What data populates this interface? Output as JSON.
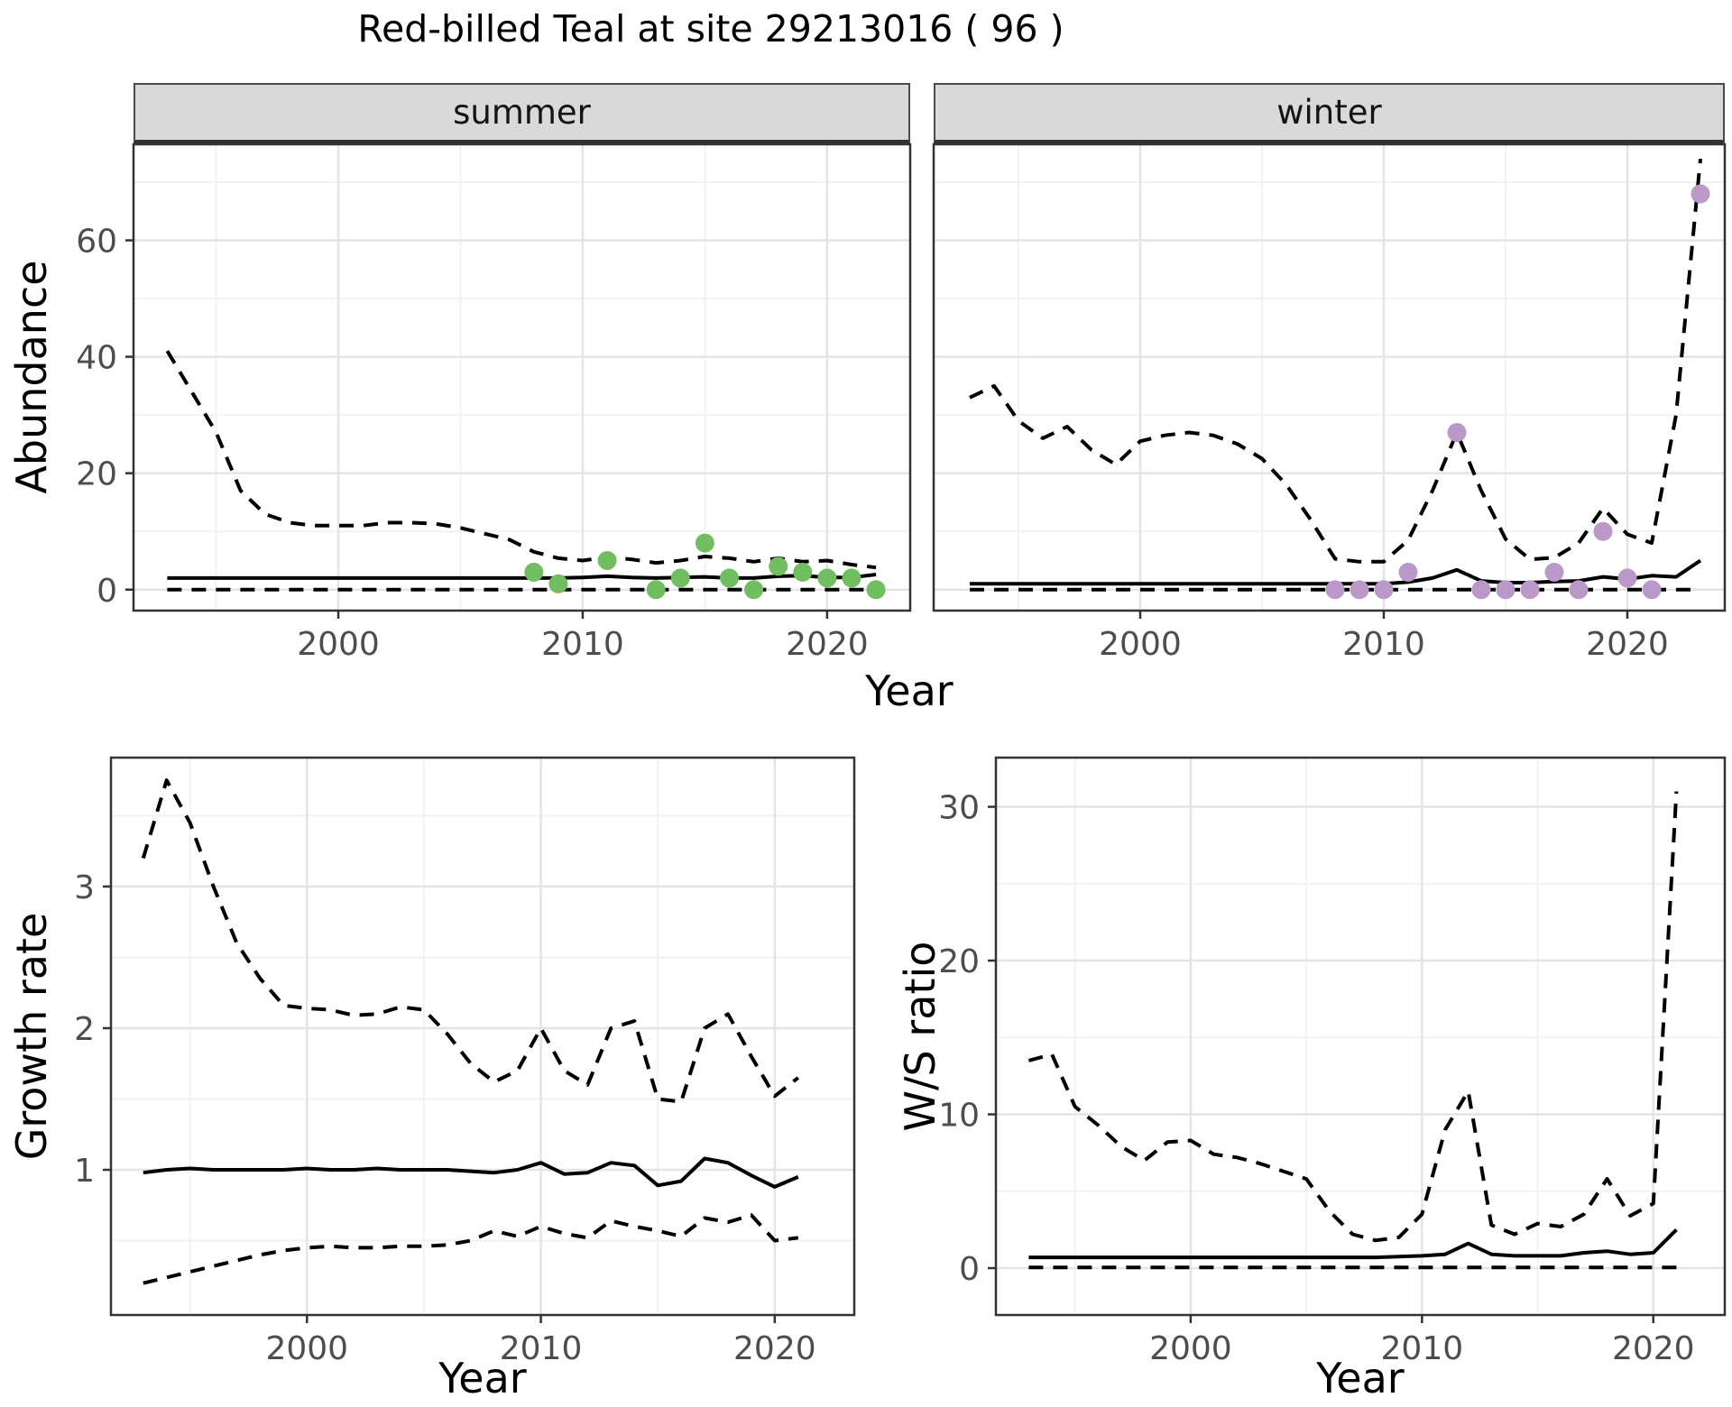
{
  "title": "Red-billed Teal at site 29213016 ( 96 )",
  "facets": [
    "summer",
    "winter"
  ],
  "axis_titles": {
    "abundance": "Abundance",
    "year": "Year",
    "growth_rate": "Growth rate",
    "ws_ratio": "W/S ratio"
  },
  "colors": {
    "summer_point": "#70BE5F",
    "winter_point": "#BA98C8",
    "line": "#000000",
    "strip_bg": "#d9d9d9",
    "panel_border": "#333333",
    "grid_major": "#e4e4e4",
    "grid_minor": "#f2f2f2",
    "tick_text": "#4d4d4d"
  },
  "chart_data": [
    {
      "key": "summer",
      "type": "line",
      "facet": "summer",
      "xlabel": "Year",
      "ylabel": "Abundance",
      "xlim": [
        1991.62,
        2023.4
      ],
      "ylim": [
        -3.6,
        76.5
      ],
      "xticks": [
        2000,
        2010,
        2020
      ],
      "yticks": [
        0,
        20,
        40,
        60
      ],
      "minor_x": [
        1995,
        2005,
        2015
      ],
      "minor_y": [
        10,
        30,
        50,
        70
      ],
      "show_y_labels": true,
      "grid": true,
      "legend": "none",
      "series": [
        {
          "name": "upper_ci",
          "style": "dashed",
          "x": [
            1993,
            1994,
            1995,
            1996,
            1997,
            1998,
            1999,
            2000,
            2001,
            2002,
            2003,
            2004,
            2005,
            2006,
            2007,
            2008,
            2009,
            2010,
            2011,
            2012,
            2013,
            2014,
            2015,
            2016,
            2017,
            2018,
            2019,
            2020,
            2021,
            2022
          ],
          "y": [
            41,
            34,
            27,
            17,
            13,
            11.5,
            11,
            11,
            11,
            11.5,
            11.5,
            11.3,
            10.6,
            9.6,
            8.6,
            6.5,
            5.4,
            5,
            5.6,
            5.2,
            4.6,
            5,
            5.7,
            5.4,
            4.8,
            5.4,
            4.8,
            5,
            4.3,
            3.8
          ]
        },
        {
          "name": "fit",
          "style": "solid",
          "x": [
            1993,
            1994,
            1995,
            1996,
            1997,
            1998,
            1999,
            2000,
            2001,
            2002,
            2003,
            2004,
            2005,
            2006,
            2007,
            2008,
            2009,
            2010,
            2011,
            2012,
            2013,
            2014,
            2015,
            2016,
            2017,
            2018,
            2019,
            2020,
            2021,
            2022
          ],
          "y": [
            2,
            2,
            2,
            2,
            2,
            2,
            2,
            2,
            2,
            2,
            2,
            2,
            2,
            2,
            2,
            2,
            2,
            2.1,
            2.3,
            2.1,
            2,
            2.1,
            2.2,
            2,
            2,
            2.3,
            2.4,
            2.1,
            2.1,
            2.6
          ]
        },
        {
          "name": "lower_ci",
          "style": "dashed",
          "x": [
            1993,
            1994,
            1995,
            1996,
            1997,
            1998,
            1999,
            2000,
            2001,
            2002,
            2003,
            2004,
            2005,
            2006,
            2007,
            2008,
            2009,
            2010,
            2011,
            2012,
            2013,
            2014,
            2015,
            2016,
            2017,
            2018,
            2019,
            2020,
            2021,
            2022
          ],
          "y": [
            0,
            0,
            0,
            0,
            0,
            0,
            0,
            0,
            0,
            0,
            0,
            0,
            0,
            0,
            0,
            0,
            0,
            0,
            0,
            0,
            0,
            0,
            0,
            0,
            0,
            0,
            0,
            0,
            0,
            0
          ]
        },
        {
          "name": "observed",
          "style": "points",
          "color": "#70BE5F",
          "x": [
            2008,
            2009,
            2011,
            2013,
            2014,
            2015,
            2016,
            2017,
            2018,
            2019,
            2020,
            2021,
            2022
          ],
          "y": [
            3,
            1,
            5,
            0,
            2,
            8,
            2,
            0,
            4,
            3,
            2,
            2,
            0
          ]
        }
      ]
    },
    {
      "key": "winter",
      "type": "line",
      "facet": "winter",
      "xlabel": "Year",
      "ylabel": "Abundance",
      "xlim": [
        1991.52,
        2024.0
      ],
      "ylim": [
        -3.6,
        76.5
      ],
      "xticks": [
        2000,
        2010,
        2020
      ],
      "yticks": [
        0,
        20,
        40,
        60
      ],
      "minor_x": [
        1995,
        2005,
        2015
      ],
      "minor_y": [
        10,
        30,
        50,
        70
      ],
      "show_y_labels": false,
      "grid": true,
      "legend": "none",
      "series": [
        {
          "name": "upper_ci",
          "style": "dashed",
          "x": [
            1993,
            1994,
            1995,
            1996,
            1997,
            1998,
            1999,
            2000,
            2001,
            2002,
            2003,
            2004,
            2005,
            2006,
            2007,
            2008,
            2009,
            2010,
            2011,
            2012,
            2013,
            2014,
            2015,
            2016,
            2017,
            2018,
            2019,
            2020,
            2021,
            2022,
            2023
          ],
          "y": [
            33,
            35,
            29,
            26,
            28,
            24,
            21.5,
            25.5,
            26.5,
            27,
            26.5,
            25,
            22.5,
            18,
            12,
            5.3,
            4.8,
            4.8,
            8.5,
            17,
            27,
            17,
            8.7,
            5.2,
            5.5,
            8,
            14,
            9.5,
            8,
            30,
            74
          ]
        },
        {
          "name": "fit",
          "style": "solid",
          "x": [
            1993,
            1994,
            1995,
            1996,
            1997,
            1998,
            1999,
            2000,
            2001,
            2002,
            2003,
            2004,
            2005,
            2006,
            2007,
            2008,
            2009,
            2010,
            2011,
            2012,
            2013,
            2014,
            2015,
            2016,
            2017,
            2018,
            2019,
            2020,
            2021,
            2022,
            2023
          ],
          "y": [
            1,
            1,
            1,
            1,
            1,
            1,
            1,
            1,
            1,
            1,
            1,
            1,
            1,
            1,
            1,
            1,
            1,
            1,
            1.3,
            2,
            3.4,
            1.5,
            1.2,
            1.2,
            1.4,
            1.5,
            2.2,
            1.8,
            2.4,
            2.2,
            5
          ]
        },
        {
          "name": "lower_ci",
          "style": "dashed",
          "x": [
            1993,
            1994,
            1995,
            1996,
            1997,
            1998,
            1999,
            2000,
            2001,
            2002,
            2003,
            2004,
            2005,
            2006,
            2007,
            2008,
            2009,
            2010,
            2011,
            2012,
            2013,
            2014,
            2015,
            2016,
            2017,
            2018,
            2019,
            2020,
            2021,
            2022,
            2023
          ],
          "y": [
            0,
            0,
            0,
            0,
            0,
            0,
            0,
            0,
            0,
            0,
            0,
            0,
            0,
            0,
            0,
            0,
            0,
            0,
            0,
            0,
            0,
            0,
            0,
            0,
            0,
            0,
            0,
            0,
            0,
            0,
            0
          ]
        },
        {
          "name": "observed",
          "style": "points",
          "color": "#BA98C8",
          "x": [
            2008,
            2009,
            2010,
            2011,
            2013,
            2014,
            2015,
            2016,
            2017,
            2018,
            2019,
            2020,
            2021,
            2023
          ],
          "y": [
            0,
            0,
            0,
            3,
            27,
            0,
            0,
            0,
            3,
            0,
            10,
            2,
            0,
            68
          ]
        }
      ]
    },
    {
      "key": "growth",
      "type": "line",
      "facet": null,
      "xlabel": "Year",
      "ylabel": "Growth rate",
      "xlim": [
        1991.62,
        2023.4
      ],
      "ylim": [
        -0.025,
        3.91
      ],
      "xticks": [
        2000,
        2010,
        2020
      ],
      "yticks": [
        1,
        2,
        3
      ],
      "minor_x": [
        1995,
        2005,
        2015
      ],
      "minor_y": [
        0.5,
        1.5,
        2.5,
        3.5
      ],
      "show_y_labels": true,
      "grid": true,
      "legend": "none",
      "series": [
        {
          "name": "upper_ci",
          "style": "dashed",
          "x": [
            1993,
            1994,
            1995,
            1996,
            1997,
            1998,
            1999,
            2000,
            2001,
            2002,
            2003,
            2004,
            2005,
            2006,
            2007,
            2008,
            2009,
            2010,
            2011,
            2012,
            2013,
            2014,
            2015,
            2016,
            2017,
            2018,
            2019,
            2020,
            2021
          ],
          "y": [
            3.2,
            3.75,
            3.45,
            3.0,
            2.6,
            2.35,
            2.16,
            2.14,
            2.13,
            2.09,
            2.1,
            2.15,
            2.13,
            1.96,
            1.75,
            1.62,
            1.7,
            2.0,
            1.7,
            1.6,
            2.0,
            2.05,
            1.5,
            1.48,
            2.0,
            2.1,
            1.8,
            1.52,
            1.65
          ]
        },
        {
          "name": "fit",
          "style": "solid",
          "x": [
            1993,
            1994,
            1995,
            1996,
            1997,
            1998,
            1999,
            2000,
            2001,
            2002,
            2003,
            2004,
            2005,
            2006,
            2007,
            2008,
            2009,
            2010,
            2011,
            2012,
            2013,
            2014,
            2015,
            2016,
            2017,
            2018,
            2019,
            2020,
            2021
          ],
          "y": [
            0.98,
            1.0,
            1.01,
            1.0,
            1.0,
            1.0,
            1.0,
            1.01,
            1.0,
            1.0,
            1.01,
            1.0,
            1.0,
            1.0,
            0.99,
            0.98,
            1.0,
            1.05,
            0.97,
            0.98,
            1.05,
            1.03,
            0.89,
            0.92,
            1.08,
            1.05,
            0.96,
            0.88,
            0.95
          ]
        },
        {
          "name": "lower_ci",
          "style": "dashed",
          "x": [
            1993,
            1994,
            1995,
            1996,
            1997,
            1998,
            1999,
            2000,
            2001,
            2002,
            2003,
            2004,
            2005,
            2006,
            2007,
            2008,
            2009,
            2010,
            2011,
            2012,
            2013,
            2014,
            2015,
            2016,
            2017,
            2018,
            2019,
            2020,
            2021
          ],
          "y": [
            0.2,
            0.24,
            0.28,
            0.32,
            0.36,
            0.4,
            0.43,
            0.45,
            0.46,
            0.45,
            0.45,
            0.46,
            0.46,
            0.47,
            0.5,
            0.57,
            0.53,
            0.6,
            0.55,
            0.52,
            0.64,
            0.6,
            0.57,
            0.53,
            0.66,
            0.63,
            0.68,
            0.5,
            0.52
          ]
        }
      ]
    },
    {
      "key": "ws",
      "type": "line",
      "facet": null,
      "xlabel": "Year",
      "ylabel": "W/S ratio",
      "xlim": [
        1991.58,
        2023.09
      ],
      "ylim": [
        -3.05,
        33.2
      ],
      "xticks": [
        2000,
        2010,
        2020
      ],
      "yticks": [
        0,
        10,
        20,
        30
      ],
      "minor_x": [
        1995,
        2005,
        2015
      ],
      "minor_y": [
        5,
        15,
        25
      ],
      "show_y_labels": true,
      "grid": true,
      "legend": "none",
      "series": [
        {
          "name": "upper_ci",
          "style": "dashed",
          "x": [
            1993,
            1994,
            1995,
            1996,
            1997,
            1998,
            1999,
            2000,
            2001,
            2002,
            2003,
            2004,
            2005,
            2006,
            2007,
            2008,
            2009,
            2010,
            2011,
            2012,
            2013,
            2014,
            2015,
            2016,
            2017,
            2018,
            2019,
            2020,
            2021
          ],
          "y": [
            13.5,
            13.9,
            10.5,
            9.3,
            7.9,
            7.0,
            8.2,
            8.3,
            7.4,
            7.2,
            6.8,
            6.3,
            5.8,
            3.7,
            2.2,
            1.8,
            2.0,
            3.5,
            9.0,
            11.5,
            2.8,
            2.2,
            2.9,
            2.7,
            3.5,
            5.8,
            3.4,
            4.2,
            31
          ]
        },
        {
          "name": "fit",
          "style": "solid",
          "x": [
            1993,
            1994,
            1995,
            1996,
            1997,
            1998,
            1999,
            2000,
            2001,
            2002,
            2003,
            2004,
            2005,
            2006,
            2007,
            2008,
            2009,
            2010,
            2011,
            2012,
            2013,
            2014,
            2015,
            2016,
            2017,
            2018,
            2019,
            2020,
            2021
          ],
          "y": [
            0.7,
            0.7,
            0.7,
            0.7,
            0.7,
            0.7,
            0.7,
            0.7,
            0.7,
            0.7,
            0.7,
            0.7,
            0.7,
            0.7,
            0.7,
            0.7,
            0.75,
            0.8,
            0.9,
            1.6,
            0.9,
            0.8,
            0.8,
            0.8,
            1.0,
            1.1,
            0.9,
            1.0,
            2.5
          ]
        },
        {
          "name": "lower_ci",
          "style": "dashed",
          "x": [
            1993,
            1994,
            1995,
            1996,
            1997,
            1998,
            1999,
            2000,
            2001,
            2002,
            2003,
            2004,
            2005,
            2006,
            2007,
            2008,
            2009,
            2010,
            2011,
            2012,
            2013,
            2014,
            2015,
            2016,
            2017,
            2018,
            2019,
            2020,
            2021
          ],
          "y": [
            0.05,
            0.05,
            0.05,
            0.05,
            0.05,
            0.05,
            0.05,
            0.05,
            0.05,
            0.05,
            0.05,
            0.05,
            0.05,
            0.05,
            0.05,
            0.05,
            0.05,
            0.05,
            0.05,
            0.05,
            0.05,
            0.05,
            0.05,
            0.05,
            0.05,
            0.05,
            0.05,
            0.05,
            0.05
          ]
        }
      ]
    }
  ]
}
